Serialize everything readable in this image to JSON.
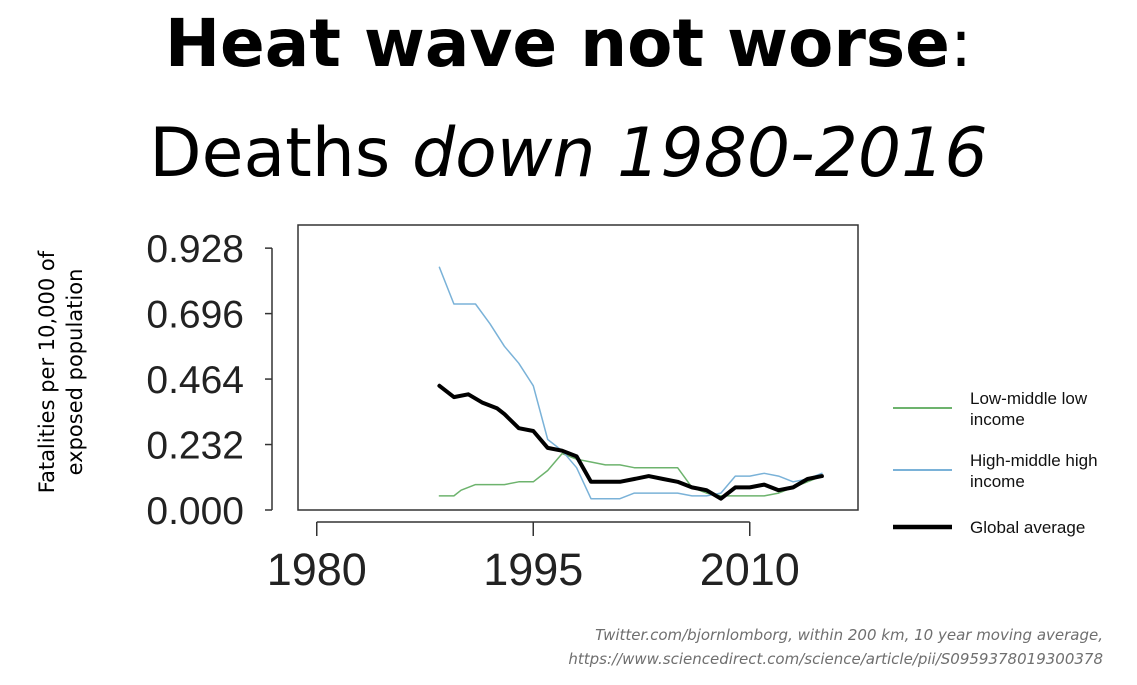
{
  "title": {
    "bold_part": "Heat wave not worse",
    "colon": ":",
    "line2_prefix": "Deaths ",
    "line2_italic": "down 1980-2016"
  },
  "source_note": {
    "line1": "Twitter.com/bjornlomborg, within 200 km, 10 year moving average,",
    "line2": "https://www.sciencedirect.com/science/article/pii/S0959378019300378"
  },
  "chart_data": {
    "type": "line",
    "ylabel": "Fatalities per 10,000 of exposed population",
    "xlabel": "",
    "xlim": [
      1978.7,
      2017.5
    ],
    "ylim": [
      0,
      1.01
    ],
    "xticks": [
      1980,
      1995,
      2010
    ],
    "xtick_labels": [
      "1980",
      "1995",
      "2010"
    ],
    "yticks": [
      0,
      0.232,
      0.464,
      0.696,
      0.928
    ],
    "ytick_labels": [
      "0.000",
      "0.232",
      "0.464",
      "0.696",
      "0.928"
    ],
    "grid": false,
    "legend_position": "right",
    "series": [
      {
        "name": "Low-middle low income",
        "color": "#6db36d",
        "stroke_width": 1.5,
        "points": [
          [
            1988.5,
            0.05
          ],
          [
            1989.5,
            0.05
          ],
          [
            1990,
            0.07
          ],
          [
            1991,
            0.09
          ],
          [
            1992,
            0.09
          ],
          [
            1993,
            0.09
          ],
          [
            1994,
            0.1
          ],
          [
            1995,
            0.1
          ],
          [
            1996,
            0.14
          ],
          [
            1997,
            0.2
          ],
          [
            1998,
            0.18
          ],
          [
            1999,
            0.17
          ],
          [
            2000,
            0.16
          ],
          [
            2001,
            0.16
          ],
          [
            2002,
            0.15
          ],
          [
            2003,
            0.15
          ],
          [
            2004,
            0.15
          ],
          [
            2005,
            0.15
          ],
          [
            2006,
            0.08
          ],
          [
            2007,
            0.06
          ],
          [
            2008,
            0.05
          ],
          [
            2009,
            0.05
          ],
          [
            2010,
            0.05
          ],
          [
            2011,
            0.05
          ],
          [
            2012,
            0.06
          ],
          [
            2013,
            0.08
          ],
          [
            2014,
            0.1
          ],
          [
            2015,
            0.12
          ]
        ]
      },
      {
        "name": "High-middle high income",
        "color": "#7ab2d8",
        "stroke_width": 1.5,
        "points": [
          [
            1988.5,
            0.86
          ],
          [
            1989.5,
            0.73
          ],
          [
            1990,
            0.73
          ],
          [
            1991,
            0.73
          ],
          [
            1992,
            0.66
          ],
          [
            1993,
            0.58
          ],
          [
            1994,
            0.52
          ],
          [
            1995,
            0.44
          ],
          [
            1996,
            0.25
          ],
          [
            1997,
            0.21
          ],
          [
            1998,
            0.15
          ],
          [
            1999,
            0.04
          ],
          [
            2000,
            0.04
          ],
          [
            2001,
            0.04
          ],
          [
            2002,
            0.06
          ],
          [
            2003,
            0.06
          ],
          [
            2004,
            0.06
          ],
          [
            2005,
            0.06
          ],
          [
            2006,
            0.05
          ],
          [
            2007,
            0.05
          ],
          [
            2008,
            0.06
          ],
          [
            2009,
            0.12
          ],
          [
            2010,
            0.12
          ],
          [
            2011,
            0.13
          ],
          [
            2012,
            0.12
          ],
          [
            2013,
            0.1
          ],
          [
            2014,
            0.11
          ],
          [
            2015,
            0.13
          ]
        ]
      },
      {
        "name": "Global average",
        "color": "#000000",
        "stroke_width": 4,
        "points": [
          [
            1988.5,
            0.44
          ],
          [
            1989.5,
            0.4
          ],
          [
            1990.5,
            0.41
          ],
          [
            1991.5,
            0.38
          ],
          [
            1992.5,
            0.36
          ],
          [
            1993,
            0.34
          ],
          [
            1994,
            0.29
          ],
          [
            1995,
            0.28
          ],
          [
            1996,
            0.22
          ],
          [
            1997,
            0.21
          ],
          [
            1998,
            0.19
          ],
          [
            1999,
            0.1
          ],
          [
            2000,
            0.1
          ],
          [
            2001,
            0.1
          ],
          [
            2002,
            0.11
          ],
          [
            2003,
            0.12
          ],
          [
            2004,
            0.11
          ],
          [
            2005,
            0.1
          ],
          [
            2006,
            0.08
          ],
          [
            2007,
            0.07
          ],
          [
            2008,
            0.04
          ],
          [
            2009,
            0.08
          ],
          [
            2010,
            0.08
          ],
          [
            2011,
            0.09
          ],
          [
            2012,
            0.07
          ],
          [
            2013,
            0.08
          ],
          [
            2014,
            0.11
          ],
          [
            2015,
            0.12
          ]
        ]
      }
    ]
  }
}
